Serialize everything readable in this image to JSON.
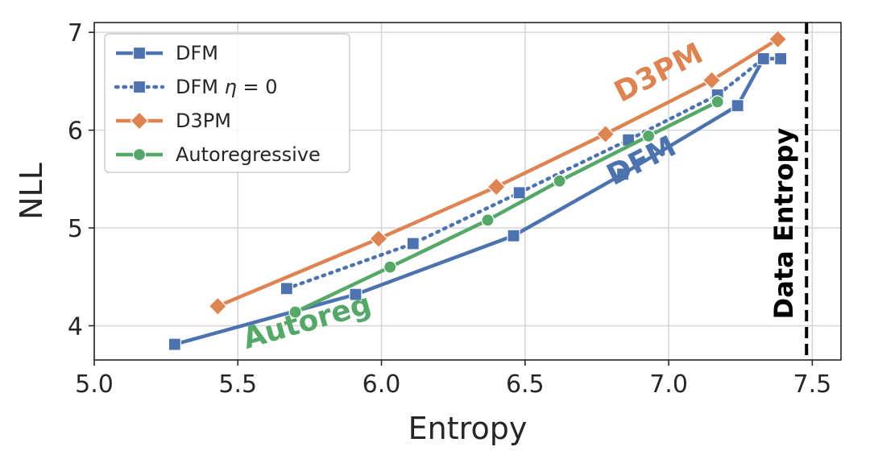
{
  "chart_data": {
    "type": "line",
    "xlabel": "Entropy",
    "ylabel": "NLL",
    "xlim": [
      5.0,
      7.6
    ],
    "ylim": [
      3.65,
      7.1
    ],
    "xticks": [
      5.0,
      5.5,
      6.0,
      6.5,
      7.0,
      7.5
    ],
    "xtick_labels": [
      "5.0",
      "5.5",
      "6.0",
      "6.5",
      "7.0",
      "7.5"
    ],
    "yticks": [
      4,
      5,
      6,
      7
    ],
    "ytick_labels": [
      "4",
      "5",
      "6",
      "7"
    ],
    "grid": true,
    "legend_position": "top-left",
    "series": [
      {
        "name": "DFM",
        "legend_parts": [
          "DFM"
        ],
        "color": "#4c72b0",
        "marker": "square",
        "linestyle": "solid",
        "x": [
          5.28,
          5.91,
          6.46,
          6.84,
          7.24,
          7.33,
          7.39
        ],
        "y": [
          3.81,
          4.32,
          4.92,
          5.55,
          6.25,
          6.73,
          6.73
        ]
      },
      {
        "name": "DFM η = 0",
        "legend_parts": [
          "DFM",
          "η",
          "= 0"
        ],
        "color": "#4c72b0",
        "marker": "square",
        "linestyle": "dotted",
        "x": [
          5.67,
          6.11,
          6.48,
          6.86,
          7.17,
          7.33
        ],
        "y": [
          4.38,
          4.84,
          5.36,
          5.9,
          6.36,
          6.73
        ]
      },
      {
        "name": "D3PM",
        "legend_parts": [
          "D3PM"
        ],
        "color": "#dd8452",
        "marker": "diamond",
        "linestyle": "solid",
        "x": [
          5.43,
          5.99,
          6.4,
          6.78,
          7.15,
          7.38
        ],
        "y": [
          4.2,
          4.89,
          5.42,
          5.96,
          6.51,
          6.93
        ]
      },
      {
        "name": "Autoregressive",
        "legend_parts": [
          "Autoregressive"
        ],
        "color": "#55a868",
        "marker": "circle",
        "linestyle": "solid",
        "x": [
          5.7,
          6.03,
          6.37,
          6.62,
          6.93,
          7.17
        ],
        "y": [
          4.14,
          4.6,
          5.08,
          5.48,
          5.94,
          6.29
        ]
      }
    ],
    "vline": {
      "x": 7.48,
      "label": "Data Entropy",
      "color": "#000000"
    },
    "annotations": [
      {
        "text": "D3PM",
        "color": "#dd8452",
        "x": 6.98,
        "y": 6.5,
        "angle": -27
      },
      {
        "text": "DFM",
        "color": "#4c72b0",
        "x": 6.92,
        "y": 5.6,
        "angle": -27
      },
      {
        "text": "Autoreg",
        "color": "#55a868",
        "x": 5.75,
        "y": 3.95,
        "angle": -16
      }
    ]
  }
}
